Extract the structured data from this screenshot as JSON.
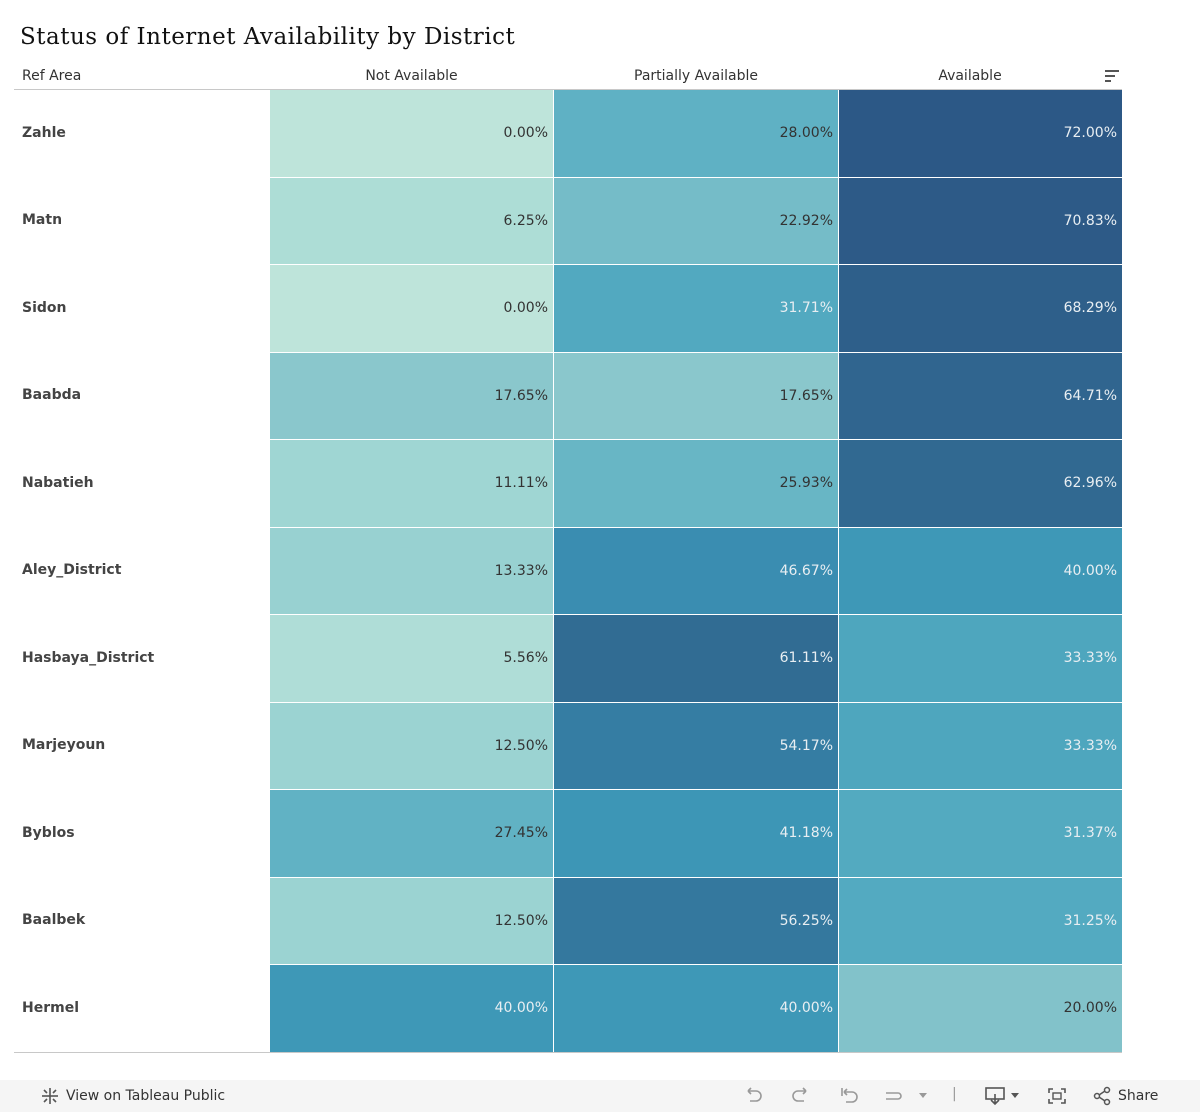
{
  "title": "Status of Internet Availability by District",
  "headers": {
    "row_header": "Ref Area",
    "columns": [
      "Not Available",
      "Partially Available",
      "Available"
    ]
  },
  "chart_data": {
    "type": "heatmap",
    "title": "Status of Internet Availability by District",
    "row_label": "Ref Area",
    "columns": [
      "Not Available",
      "Partially Available",
      "Available"
    ],
    "rows": [
      "Zahle",
      "Matn",
      "Sidon",
      "Baabda",
      "Nabatieh",
      "Aley_District",
      "Hasbaya_District",
      "Marjeyoun",
      "Byblos",
      "Baalbek",
      "Hermel"
    ],
    "values": [
      [
        "0.00%",
        "28.00%",
        "72.00%"
      ],
      [
        "6.25%",
        "22.92%",
        "70.83%"
      ],
      [
        "0.00%",
        "31.71%",
        "68.29%"
      ],
      [
        "17.65%",
        "17.65%",
        "64.71%"
      ],
      [
        "11.11%",
        "25.93%",
        "62.96%"
      ],
      [
        "13.33%",
        "46.67%",
        "40.00%"
      ],
      [
        "5.56%",
        "61.11%",
        "33.33%"
      ],
      [
        "12.50%",
        "54.17%",
        "33.33%"
      ],
      [
        "27.45%",
        "41.18%",
        "31.37%"
      ],
      [
        "12.50%",
        "56.25%",
        "31.25%"
      ],
      [
        "40.00%",
        "40.00%",
        "20.00%"
      ]
    ]
  },
  "toolbar": {
    "view_label": "View on Tableau Public",
    "share_label": "Share"
  }
}
